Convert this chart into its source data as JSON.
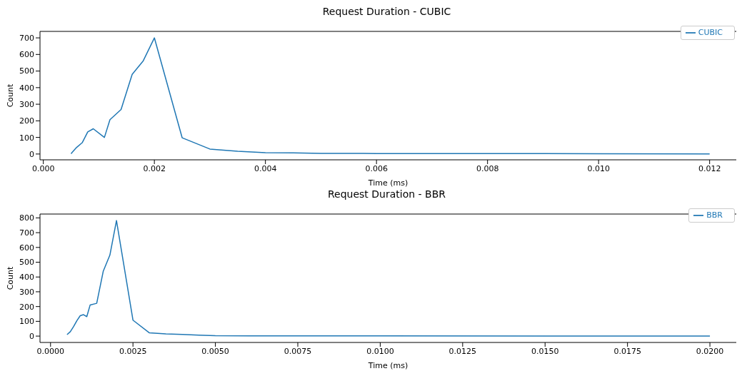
{
  "chart_data": [
    {
      "type": "line",
      "title": "Request Duration - CUBIC",
      "xlabel": "Time (ms)",
      "ylabel": "Count",
      "legend": "top right",
      "grid": false,
      "xlim": [
        -6e-05,
        0.01248
      ],
      "ylim": [
        -35,
        739
      ],
      "xticks": [
        {
          "value": 0,
          "label": "0.000"
        },
        {
          "value": 0.002,
          "label": "0.002"
        },
        {
          "value": 0.004,
          "label": "0.004"
        },
        {
          "value": 0.006,
          "label": "0.006"
        },
        {
          "value": 0.008,
          "label": "0.008"
        },
        {
          "value": 0.01,
          "label": "0.010"
        },
        {
          "value": 0.012,
          "label": "0.012"
        }
      ],
      "yticks": [
        0,
        100,
        200,
        300,
        400,
        500,
        600,
        700
      ],
      "series": [
        {
          "name": "CUBIC",
          "color": "#1f77b4",
          "x": [
            0.0005,
            0.00052,
            0.0006,
            0.0007,
            0.0008,
            0.0009,
            0.0011,
            0.0012,
            0.0014,
            0.0016,
            0.0018,
            0.002,
            0.0025,
            0.003,
            0.0035,
            0.004,
            0.0045,
            0.005,
            0.006,
            0.008,
            0.01,
            0.012
          ],
          "values": [
            2,
            10,
            40,
            68,
            133,
            152,
            100,
            207,
            268,
            480,
            562,
            700,
            98,
            30,
            17,
            8,
            7,
            4,
            3,
            3,
            2,
            1
          ]
        }
      ]
    },
    {
      "type": "line",
      "title": "Request Duration - BBR",
      "xlabel": "Time (ms)",
      "ylabel": "Count",
      "legend": "top right",
      "grid": false,
      "xlim": [
        -0.00032,
        0.0208
      ],
      "ylim": [
        -43,
        826
      ],
      "xticks": [
        {
          "value": 0,
          "label": "0.0000"
        },
        {
          "value": 0.0025,
          "label": "0.0025"
        },
        {
          "value": 0.005,
          "label": "0.0050"
        },
        {
          "value": 0.0075,
          "label": "0.0075"
        },
        {
          "value": 0.01,
          "label": "0.0100"
        },
        {
          "value": 0.0125,
          "label": "0.0125"
        },
        {
          "value": 0.015,
          "label": "0.0150"
        },
        {
          "value": 0.0175,
          "label": "0.0175"
        },
        {
          "value": 0.02,
          "label": "0.0200"
        }
      ],
      "yticks": [
        0,
        100,
        200,
        300,
        400,
        500,
        600,
        700,
        800
      ],
      "series": [
        {
          "name": "BBR",
          "color": "#1f77b4",
          "x": [
            0.0005,
            0.0006,
            0.0007,
            0.0008,
            0.0009,
            0.001,
            0.0011,
            0.0012,
            0.0014,
            0.0016,
            0.0018,
            0.002,
            0.0025,
            0.003,
            0.0035,
            0.004,
            0.0045,
            0.005,
            0.006,
            0.008,
            0.01,
            0.015,
            0.02
          ],
          "values": [
            10,
            30,
            65,
            105,
            138,
            145,
            132,
            210,
            222,
            440,
            548,
            782,
            108,
            22,
            15,
            11,
            6,
            3,
            2,
            2,
            2,
            1,
            1
          ]
        }
      ]
    }
  ]
}
